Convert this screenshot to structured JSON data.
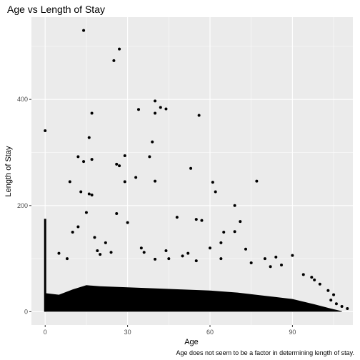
{
  "chart_data": {
    "type": "scatter",
    "title": "Age vs Length of Stay",
    "xlabel": "Age",
    "ylabel": "Length of Stay",
    "caption": "Age does not seem to be a factor in determining length of stay.",
    "xlim": [
      -5,
      112
    ],
    "ylim": [
      -25,
      555
    ],
    "x_ticks": [
      0,
      30,
      60,
      90
    ],
    "x_tick_labels": [
      "0",
      "30",
      "60",
      "90"
    ],
    "y_ticks": [
      0,
      200,
      400
    ],
    "y_tick_labels": [
      "0",
      "200",
      "400"
    ],
    "grid": true,
    "colors": {
      "panel": "#ebebeb",
      "grid": "#ffffff",
      "point": "#000000"
    },
    "points": [
      [
        14,
        530
      ],
      [
        27,
        495
      ],
      [
        25,
        473
      ],
      [
        40,
        397
      ],
      [
        42,
        385
      ],
      [
        44,
        382
      ],
      [
        34,
        381
      ],
      [
        40,
        374
      ],
      [
        17,
        374
      ],
      [
        56,
        370
      ],
      [
        0,
        341
      ],
      [
        16,
        328
      ],
      [
        39,
        320
      ],
      [
        29,
        294
      ],
      [
        12,
        292
      ],
      [
        38,
        292
      ],
      [
        17,
        287
      ],
      [
        14,
        283
      ],
      [
        26,
        278
      ],
      [
        27,
        275
      ],
      [
        53,
        270
      ],
      [
        33,
        253
      ],
      [
        29,
        245
      ],
      [
        40,
        246
      ],
      [
        9,
        245
      ],
      [
        61,
        244
      ],
      [
        77,
        246
      ],
      [
        13,
        226
      ],
      [
        62,
        226
      ],
      [
        16,
        222
      ],
      [
        17,
        220
      ],
      [
        69,
        200
      ],
      [
        15,
        187
      ],
      [
        26,
        185
      ],
      [
        48,
        178
      ],
      [
        55,
        174
      ],
      [
        71,
        170
      ],
      [
        30,
        168
      ],
      [
        57,
        172
      ],
      [
        65,
        150
      ],
      [
        69,
        151
      ],
      [
        64,
        130
      ],
      [
        44,
        115
      ],
      [
        73,
        118
      ],
      [
        90,
        106
      ],
      [
        84,
        103
      ],
      [
        80,
        100
      ],
      [
        60,
        120
      ],
      [
        10,
        150
      ],
      [
        12,
        160
      ],
      [
        18,
        140
      ],
      [
        22,
        130
      ],
      [
        5,
        110
      ],
      [
        8,
        100
      ],
      [
        35,
        120
      ],
      [
        50,
        105
      ],
      [
        52,
        110
      ],
      [
        36,
        112
      ],
      [
        19,
        115
      ],
      [
        20,
        108
      ],
      [
        24,
        112
      ],
      [
        45,
        100
      ],
      [
        55,
        96
      ],
      [
        40,
        99
      ],
      [
        64,
        100
      ],
      [
        75,
        92
      ],
      [
        82,
        85
      ],
      [
        86,
        88
      ],
      [
        94,
        70
      ],
      [
        98,
        60
      ],
      [
        100,
        52
      ],
      [
        103,
        40
      ],
      [
        105,
        32
      ],
      [
        108,
        10
      ],
      [
        110,
        6
      ],
      [
        106,
        15
      ],
      [
        104,
        22
      ],
      [
        97,
        65
      ]
    ]
  }
}
